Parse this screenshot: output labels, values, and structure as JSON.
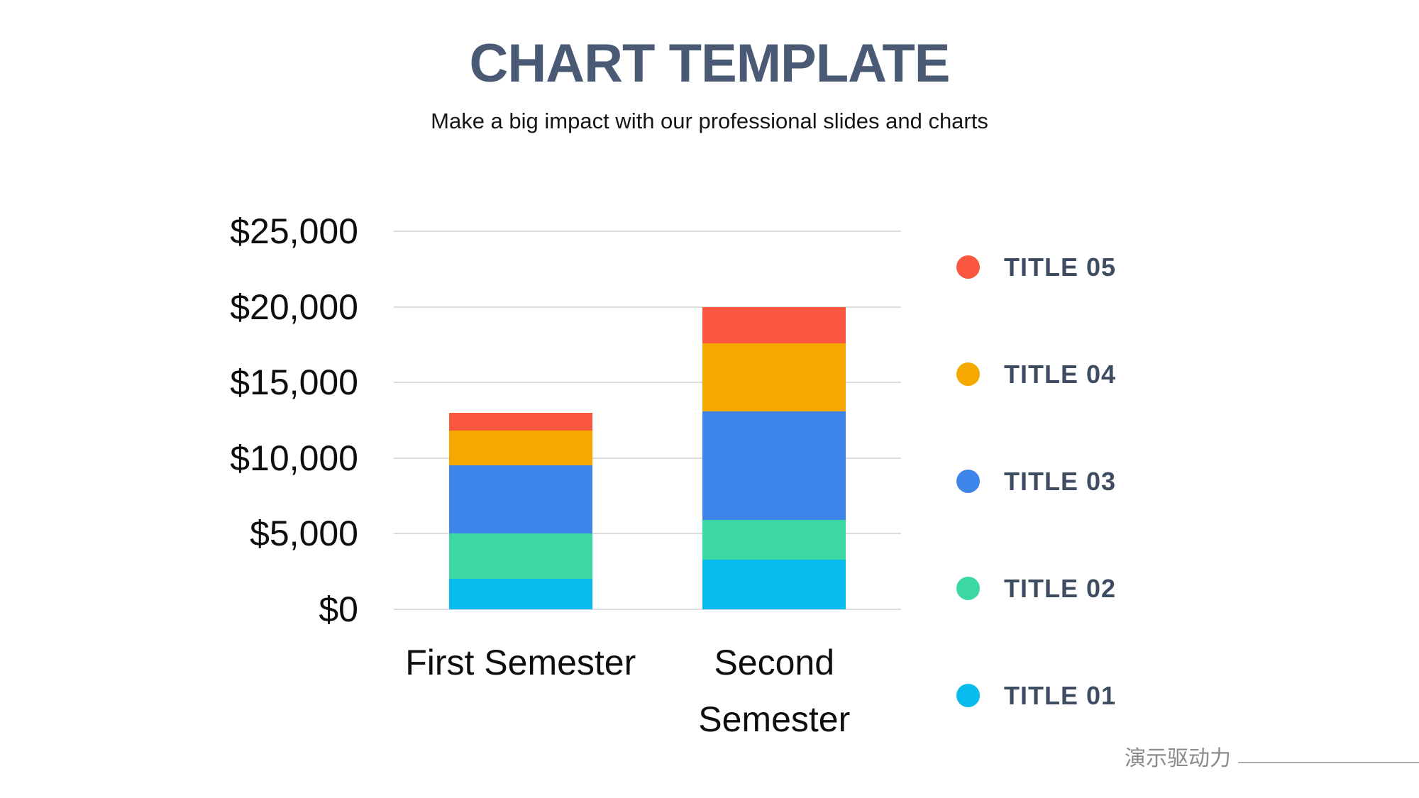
{
  "header": {
    "title": "CHART TEMPLATE",
    "subtitle": "Make a big impact with our professional slides and charts"
  },
  "footer": {
    "brand": "演示驱动力"
  },
  "colors": {
    "title_text": "#4A5A74",
    "legend_text": "#3E4C61",
    "gridline": "#DCDCDC",
    "axis_text": "#0D0D0D",
    "footer_text": "#8B8B8B"
  },
  "chart_data": {
    "type": "bar",
    "stacked": true,
    "title": "CHART TEMPLATE",
    "xlabel": "",
    "ylabel": "",
    "categories": [
      "First Semester",
      "Second Semester"
    ],
    "series": [
      {
        "name": "TITLE 01",
        "color": "#09BCF0",
        "values": [
          2000,
          3300
        ]
      },
      {
        "name": "TITLE 02",
        "color": "#3BD8A4",
        "values": [
          3000,
          2600
        ]
      },
      {
        "name": "TITLE 03",
        "color": "#3D85E9",
        "values": [
          4500,
          7200
        ]
      },
      {
        "name": "TITLE 04",
        "color": "#F5A800",
        "values": [
          2300,
          4500
        ]
      },
      {
        "name": "TITLE 05",
        "color": "#F95740",
        "values": [
          1200,
          2400
        ]
      }
    ],
    "totals": [
      13000,
      20000
    ],
    "ylim": [
      0,
      25000
    ],
    "ytick_step": 5000,
    "ytick_labels": [
      "$0",
      "$5,000",
      "$10,000",
      "$15,000",
      "$20,000",
      "$25,000"
    ],
    "grid": true,
    "legend_position": "right",
    "legend_order": [
      "TITLE 05",
      "TITLE 04",
      "TITLE 03",
      "TITLE 02",
      "TITLE 01"
    ]
  }
}
